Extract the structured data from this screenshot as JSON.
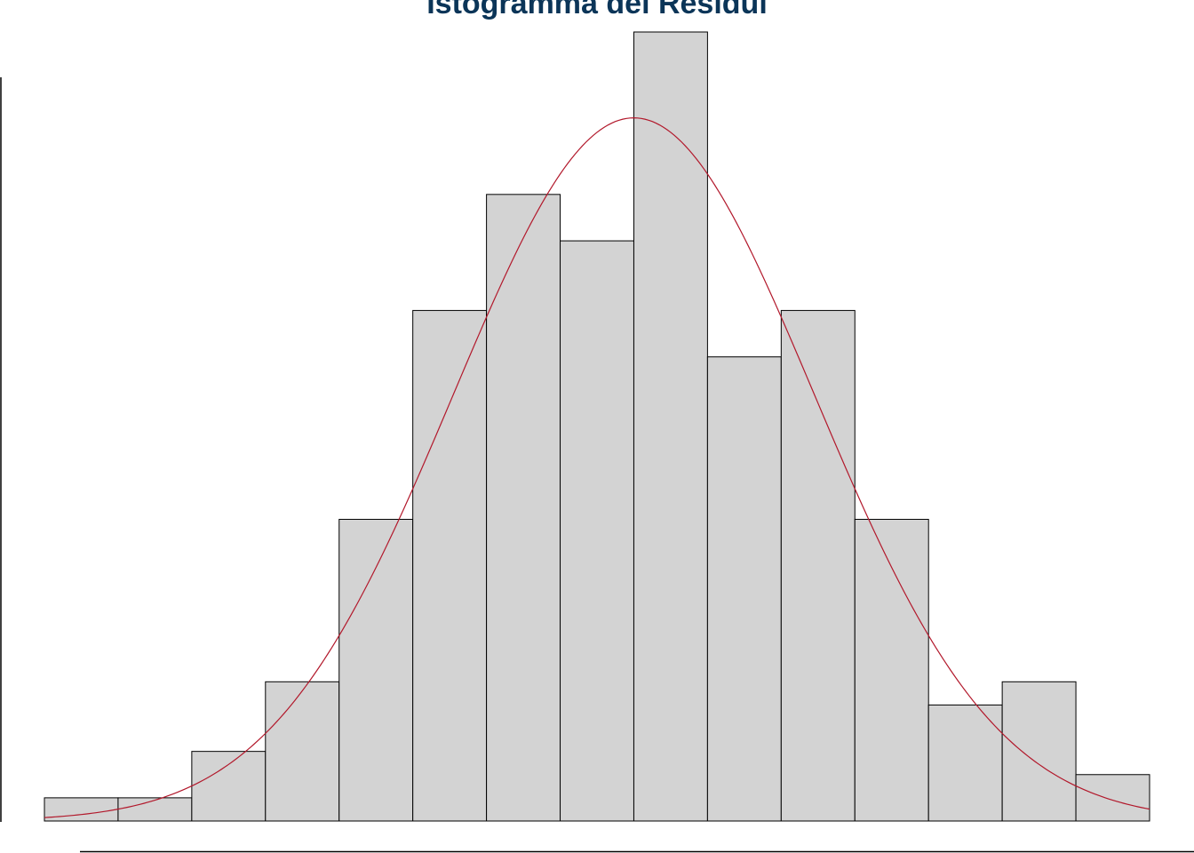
{
  "colors": {
    "title": "#0b3558",
    "bar_fill": "#d3d3d3",
    "bar_stroke": "#000000",
    "curve": "#b2182b",
    "axis": "#000000"
  },
  "chart_data": {
    "type": "bar",
    "title": "Istogramma dei Residui",
    "xlabel": "",
    "ylabel": "",
    "bins": 15,
    "values": [
      1,
      1,
      3,
      6,
      13,
      22,
      27,
      25,
      34,
      20,
      22,
      13,
      5,
      6,
      2
    ],
    "ylim": [
      0,
      34
    ],
    "grid": false,
    "axis_tick_labels_visible": false,
    "overlay": {
      "type": "line",
      "description": "normal curve",
      "peak_bin_position": 8.0,
      "peak_value": 30.3,
      "sigma_bins": 2.45
    }
  }
}
